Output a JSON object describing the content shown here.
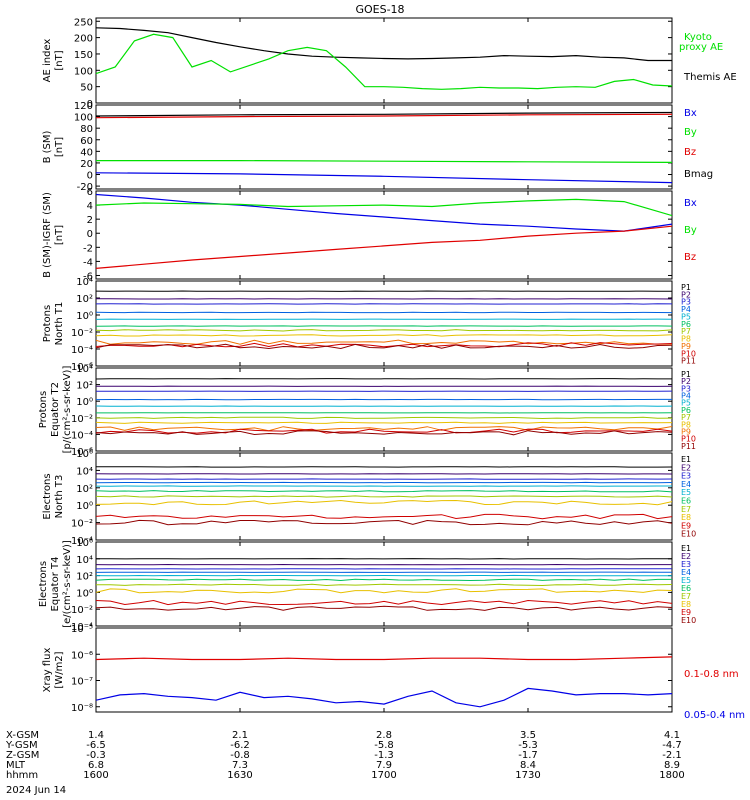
{
  "title": "GOES-18",
  "date": "2024 Jun 14",
  "colors": {
    "black": "#000000",
    "green": "#00e000",
    "blue": "#0000e6",
    "red": "#e00000",
    "darkred": "#b00000"
  },
  "orbit_table": {
    "row_labels": [
      "X-GSM",
      "Y-GSM",
      "Z-GSM",
      "MLT",
      "hhmm"
    ],
    "columns": [
      [
        "1.4",
        "-6.5",
        "-0.3",
        "6.8",
        "1600"
      ],
      [
        "2.1",
        "-6.2",
        "-0.8",
        "7.3",
        "1630"
      ],
      [
        "2.8",
        "-5.8",
        "-1.3",
        "7.9",
        "1700"
      ],
      [
        "3.5",
        "-5.3",
        "-1.7",
        "8.4",
        "1730"
      ],
      [
        "4.1",
        "-4.7",
        "-2.1",
        "8.9",
        "1800"
      ]
    ]
  },
  "chart_data": [
    {
      "type": "line",
      "ylabel": [
        "AE index",
        "[nT]"
      ],
      "yticks": [
        "250",
        "200",
        "150",
        "100",
        "50",
        "0"
      ],
      "ylim": [
        0,
        260
      ],
      "series": [
        {
          "name": "Themis AE",
          "color": "#000000",
          "x": [
            0,
            5,
            10,
            15,
            20,
            25,
            30,
            35,
            40,
            45,
            50,
            55,
            60,
            65,
            70,
            75,
            80,
            85,
            90,
            95,
            100,
            105,
            110,
            115,
            120
          ],
          "y": [
            230,
            228,
            222,
            215,
            200,
            185,
            172,
            160,
            150,
            143,
            140,
            138,
            136,
            135,
            136,
            138,
            140,
            145,
            143,
            142,
            145,
            140,
            138,
            130,
            130
          ]
        },
        {
          "name": "Kyoto proxy AE",
          "color": "#00e000",
          "x": [
            0,
            4,
            8,
            12,
            16,
            20,
            24,
            28,
            32,
            36,
            40,
            44,
            48,
            52,
            56,
            60,
            64,
            68,
            72,
            76,
            80,
            84,
            88,
            92,
            96,
            100,
            104,
            108,
            112,
            116,
            120
          ],
          "y": [
            90,
            110,
            190,
            210,
            200,
            110,
            130,
            95,
            115,
            135,
            160,
            170,
            160,
            110,
            50,
            50,
            48,
            44,
            42,
            44,
            48,
            46,
            46,
            44,
            48,
            50,
            48,
            66,
            72,
            55,
            52
          ]
        }
      ]
    },
    {
      "type": "line",
      "ylabel": [
        "B (SM)",
        "[nT]"
      ],
      "yticks": [
        "120",
        "100",
        "80",
        "60",
        "40",
        "20",
        "0",
        "-20"
      ],
      "ylim": [
        -25,
        120
      ],
      "series": [
        {
          "name": "Bx",
          "color": "#0000e6",
          "x": [
            0,
            30,
            60,
            90,
            120
          ],
          "y": [
            3,
            1,
            -3,
            -9,
            -14
          ]
        },
        {
          "name": "By",
          "color": "#00e000",
          "x": [
            0,
            30,
            60,
            90,
            120
          ],
          "y": [
            24,
            24,
            23,
            22,
            21
          ]
        },
        {
          "name": "Bz",
          "color": "#e00000",
          "x": [
            0,
            30,
            60,
            90,
            120
          ],
          "y": [
            98,
            100,
            101,
            103,
            104
          ]
        },
        {
          "name": "Bmag",
          "color": "#000000",
          "x": [
            0,
            30,
            60,
            90,
            120
          ],
          "y": [
            101,
            103,
            104,
            106,
            107
          ]
        }
      ]
    },
    {
      "type": "line",
      "ylabel": [
        "B (SM)-IGRF (SM)",
        "[nT]"
      ],
      "yticks": [
        "6",
        "4",
        "2",
        "0",
        "-2",
        "-4",
        "-6"
      ],
      "ylim": [
        -6.5,
        6
      ],
      "series": [
        {
          "name": "Bx",
          "color": "#0000e6",
          "x": [
            0,
            10,
            20,
            30,
            40,
            50,
            60,
            70,
            80,
            90,
            100,
            110,
            120
          ],
          "y": [
            5.5,
            5.0,
            4.4,
            4.0,
            3.4,
            2.8,
            2.3,
            1.8,
            1.3,
            1.0,
            0.6,
            0.3,
            1.3
          ]
        },
        {
          "name": "By",
          "color": "#00e000",
          "x": [
            0,
            10,
            20,
            30,
            40,
            50,
            60,
            70,
            80,
            90,
            100,
            110,
            120
          ],
          "y": [
            4.0,
            4.3,
            4.2,
            4.1,
            3.8,
            3.9,
            4.0,
            3.8,
            4.3,
            4.6,
            4.8,
            4.5,
            2.5
          ]
        },
        {
          "name": "Bz",
          "color": "#e00000",
          "x": [
            0,
            10,
            20,
            30,
            40,
            50,
            60,
            70,
            80,
            90,
            100,
            110,
            120
          ],
          "y": [
            -5.0,
            -4.4,
            -3.8,
            -3.3,
            -2.8,
            -2.3,
            -1.8,
            -1.3,
            -1.0,
            -0.4,
            0.0,
            0.3,
            1.0
          ]
        }
      ]
    },
    {
      "type": "line",
      "ylabel": [
        "Protons",
        "North T1"
      ],
      "yticks": [
        "10⁴",
        "10²",
        "10⁰",
        "10⁻²",
        "10⁻⁴",
        "10⁻⁶"
      ],
      "log_range": [
        -6,
        4
      ],
      "channels": [
        "P1",
        "P2",
        "P3",
        "P4",
        "P5",
        "P6",
        "P7",
        "P8",
        "P9",
        "P10",
        "P11"
      ],
      "channel_colors": [
        "#000000",
        "#3a006e",
        "#2020d0",
        "#0060e0",
        "#00b0d0",
        "#00c060",
        "#a0c800",
        "#e8c000",
        "#f07000",
        "#d00000",
        "#900000"
      ],
      "levels": [
        2.8,
        1.9,
        1.3,
        0.3,
        -0.5,
        -1.3,
        -1.8,
        -2.4,
        -3.2,
        -3.5,
        -3.7
      ]
    },
    {
      "type": "line",
      "ylabel": [
        "Protons",
        "Equator T2",
        "[p/(cm²-s-sr-keV)]"
      ],
      "yticks": [
        "10⁴",
        "10²",
        "10⁰",
        "10⁻²",
        "10⁻⁴",
        "10⁻⁶"
      ],
      "log_range": [
        -6,
        4
      ],
      "channels": [
        "P1",
        "P2",
        "P3",
        "P4",
        "P5",
        "P6",
        "P7",
        "P8",
        "P9",
        "P10",
        "P11"
      ],
      "channel_colors": [
        "#000000",
        "#3a006e",
        "#2020d0",
        "#0060e0",
        "#00b0d0",
        "#00c060",
        "#a0c800",
        "#e8c000",
        "#f07000",
        "#d00000",
        "#900000"
      ],
      "levels": [
        2.7,
        1.8,
        1.2,
        0.2,
        -0.6,
        -1.4,
        -2.0,
        -2.6,
        -3.3,
        -3.6,
        -3.8
      ]
    },
    {
      "type": "line",
      "ylabel": [
        "Electrons",
        "North T3"
      ],
      "yticks": [
        "10⁶",
        "10⁴",
        "10²",
        "10⁰",
        "10⁻²",
        "10⁻⁴"
      ],
      "log_range": [
        -4,
        6
      ],
      "channels": [
        "E1",
        "E2",
        "E3",
        "E4",
        "E5",
        "E6",
        "E7",
        "E8",
        "E9",
        "E10"
      ],
      "channel_colors": [
        "#000000",
        "#3a006e",
        "#2020d0",
        "#0060e0",
        "#00b0d0",
        "#00c060",
        "#a0c800",
        "#e8c000",
        "#d00000",
        "#900000"
      ],
      "levels": [
        4.4,
        3.6,
        3.0,
        2.6,
        2.2,
        1.6,
        1.0,
        0.3,
        -1.3,
        -2.0
      ]
    },
    {
      "type": "line",
      "ylabel": [
        "Electrons",
        "Equator T4",
        "[e/(cm²-s-sr-keV)]"
      ],
      "yticks": [
        "10⁶",
        "10⁴",
        "10²",
        "10⁰",
        "10⁻²",
        "10⁻⁴"
      ],
      "log_range": [
        -4,
        6
      ],
      "channels": [
        "E1",
        "E2",
        "E3",
        "E4",
        "E5",
        "E6",
        "E7",
        "E8",
        "E9",
        "E10"
      ],
      "channel_colors": [
        "#000000",
        "#3a006e",
        "#2020d0",
        "#0060e0",
        "#00b0d0",
        "#00c060",
        "#a0c800",
        "#e8c000",
        "#d00000",
        "#900000"
      ],
      "levels": [
        4.0,
        3.3,
        2.8,
        2.4,
        2.0,
        1.5,
        0.9,
        0.2,
        -1.2,
        -1.9
      ]
    },
    {
      "type": "line",
      "ylabel": [
        "Xray flux",
        "[W/m2]"
      ],
      "yticks": [
        "10⁻⁵",
        "10⁻⁶",
        "10⁻⁷",
        "10⁻⁸"
      ],
      "log_range": [
        -8.2,
        -5
      ],
      "series": [
        {
          "name": "0.1-0.8 nm",
          "color": "#e00000",
          "x": [
            0,
            10,
            20,
            30,
            40,
            50,
            60,
            70,
            80,
            90,
            100,
            110,
            120
          ],
          "y": [
            -6.2,
            -6.15,
            -6.2,
            -6.2,
            -6.15,
            -6.2,
            -6.2,
            -6.15,
            -6.15,
            -6.2,
            -6.2,
            -6.15,
            -6.1
          ]
        },
        {
          "name": "0.05-0.4 nm",
          "color": "#0000e6",
          "x": [
            0,
            5,
            10,
            15,
            20,
            25,
            30,
            35,
            40,
            45,
            50,
            55,
            60,
            65,
            70,
            75,
            80,
            85,
            90,
            95,
            100,
            105,
            110,
            115,
            120
          ],
          "y": [
            -7.75,
            -7.55,
            -7.5,
            -7.6,
            -7.65,
            -7.75,
            -7.45,
            -7.65,
            -7.6,
            -7.7,
            -7.85,
            -7.8,
            -7.9,
            -7.6,
            -7.4,
            -7.85,
            -8.0,
            -7.75,
            -7.3,
            -7.4,
            -7.55,
            -7.5,
            -7.5,
            -7.55,
            -7.5
          ]
        }
      ]
    }
  ]
}
